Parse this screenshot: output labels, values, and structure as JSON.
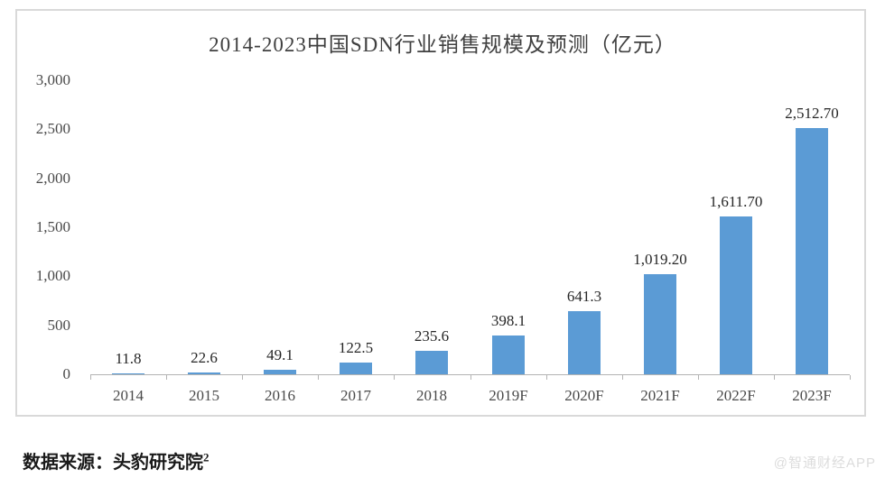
{
  "chart_data": {
    "type": "bar",
    "title": "2014-2023中国SDN行业销售规模及预测（亿元）",
    "categories": [
      "2014",
      "2015",
      "2016",
      "2017",
      "2018",
      "2019F",
      "2020F",
      "2021F",
      "2022F",
      "2023F"
    ],
    "values": [
      11.8,
      22.6,
      49.1,
      122.5,
      235.6,
      398.1,
      641.3,
      1019.2,
      1611.7,
      2512.7
    ],
    "data_labels": [
      "11.8",
      "22.6",
      "49.1",
      "122.5",
      "235.6",
      "398.1",
      "641.3",
      "1,019.20",
      "1,611.70",
      "2,512.70"
    ],
    "xlabel": "",
    "ylabel": "",
    "ylim": [
      0,
      3000
    ],
    "ytick_interval": 500,
    "ytick_labels": [
      "0",
      "500",
      "1,000",
      "1,500",
      "2,000",
      "2,500",
      "3,000"
    ],
    "grid": false,
    "legend": "none",
    "bar_color": "#5b9bd5",
    "axis_line_color": "#b3b3b3",
    "frame_border_color": "#d9d9d9"
  },
  "footer": {
    "source_prefix": "数据来源：头豹研究院",
    "source_superscript": "2",
    "watermark": "@智通财经APP"
  }
}
